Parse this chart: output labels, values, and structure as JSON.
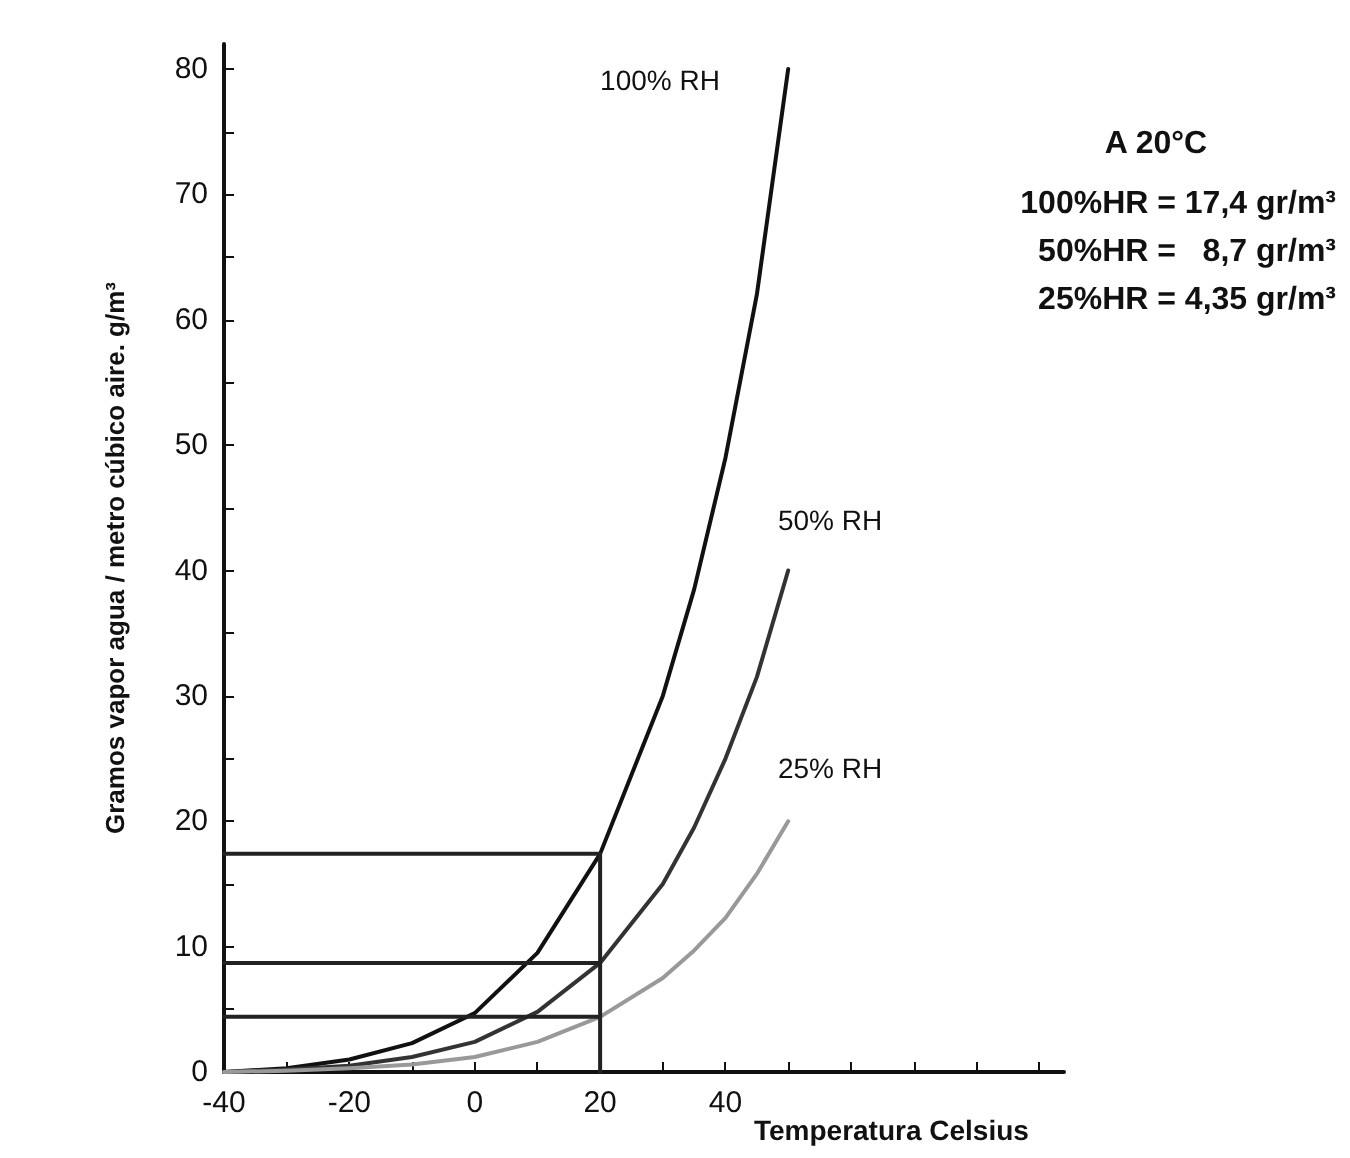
{
  "chart_data": {
    "type": "line",
    "xlabel": "Temperatura Celsius",
    "ylabel": "Gramos vapor agua / metro cúbico aire. g/m³",
    "xlim": [
      -40,
      94
    ],
    "xticks": [
      -40,
      {
        "value": -30,
        "label": null
      },
      -20,
      {
        "value": -10,
        "label": null
      },
      0,
      {
        "value": 10,
        "label": null
      },
      20,
      {
        "value": 30,
        "label": null
      },
      40,
      {
        "value": 50,
        "label": null
      },
      {
        "value": 60,
        "label": null
      },
      {
        "value": 70,
        "label": null
      },
      {
        "value": 80,
        "label": null
      },
      {
        "value": 90,
        "label": null
      }
    ],
    "ylim": [
      0,
      82
    ],
    "yticks": [
      0,
      {
        "value": 5,
        "label": null
      },
      10,
      {
        "value": 15,
        "label": null
      },
      20,
      {
        "value": 25,
        "label": null
      },
      30,
      {
        "value": 35,
        "label": null
      },
      40,
      {
        "value": 45,
        "label": null
      },
      50,
      {
        "value": 55,
        "label": null
      },
      60,
      {
        "value": 65,
        "label": null
      },
      70,
      {
        "value": 75,
        "label": null
      },
      80
    ],
    "series": [
      {
        "color": "#111111",
        "x": [
          -40,
          -30,
          -20,
          -10,
          0,
          10,
          20,
          30,
          35,
          40,
          45,
          50
        ],
        "values": [
          0,
          0.3,
          1,
          2.3,
          4.7,
          9.5,
          17.4,
          30,
          38.5,
          49,
          62,
          80
        ]
      },
      {
        "color": "#333333",
        "x": [
          -40,
          -30,
          -20,
          -10,
          0,
          10,
          20,
          30,
          35,
          40,
          45,
          50
        ],
        "values": [
          0,
          0.2,
          0.5,
          1.2,
          2.4,
          4.8,
          8.7,
          15,
          19.5,
          25,
          31.5,
          40
        ]
      },
      {
        "color": "#999999",
        "x": [
          -40,
          -30,
          -20,
          -10,
          0,
          10,
          20,
          30,
          35,
          40,
          45,
          50
        ],
        "values": [
          0,
          0.1,
          0.3,
          0.6,
          1.2,
          2.4,
          4.4,
          7.5,
          9.7,
          12.3,
          15.8,
          20
        ]
      },
      {
        "color": "#222222",
        "x": [
          -40,
          20,
          20
        ],
        "values": [
          17.4,
          17.4,
          0
        ]
      },
      {
        "color": "#222222",
        "x": [
          -40,
          20
        ],
        "values": [
          8.7,
          8.7
        ]
      },
      {
        "color": "#222222",
        "x": [
          -40,
          20
        ],
        "values": [
          4.4,
          4.4
        ]
      }
    ],
    "annotations": [
      "100% RH",
      "50% RH",
      "25% RH",
      "A 20°C",
      "100%HR = 17,4 gr/m³",
      "50%HR =   8,7 gr/m³",
      "25%HR = 4,35 gr/m³"
    ],
    "grid": false,
    "marker": "none",
    "line_style": "solid"
  }
}
